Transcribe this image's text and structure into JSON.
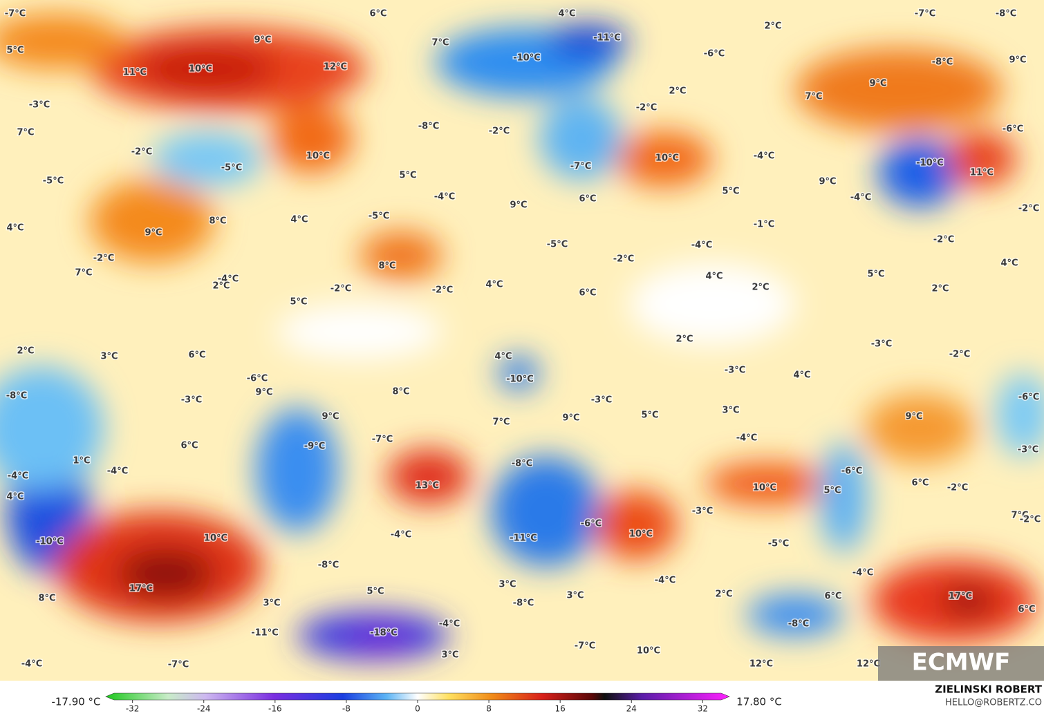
{
  "map": {
    "labels": [
      "-7°C",
      "6°C",
      "4°C",
      "-7°C",
      "-8°C",
      "5°C",
      "9°C",
      "-11°C",
      "2°C",
      "7°C",
      "11°C",
      "10°C",
      "12°C",
      "-10°C",
      "-6°C",
      "-8°C",
      "9°C",
      "-3°C",
      "9°C",
      "7°C",
      "2°C",
      "-2°C",
      "7°C",
      "-8°C",
      "-2°C",
      "-6°C",
      "-2°C",
      "-5°C",
      "10°C",
      "10°C",
      "-4°C",
      "-7°C",
      "-10°C",
      "11°C",
      "-5°C",
      "5°C",
      "9°C",
      "5°C",
      "-4°C",
      "-4°C",
      "6°C",
      "9°C",
      "-2°C",
      "4°C",
      "8°C",
      "4°C",
      "-5°C",
      "-1°C",
      "9°C",
      "-2°C",
      "-5°C",
      "-4°C",
      "-2°C",
      "8°C",
      "-2°C",
      "4°C",
      "7°C",
      "4°C",
      "5°C",
      "-4°C",
      "2°C",
      "-2°C",
      "-2°C",
      "4°C",
      "2°C",
      "2°C",
      "6°C",
      "5°C",
      "2°C",
      "-3°C",
      "2°C",
      "3°C",
      "6°C",
      "4°C",
      "-2°C",
      "-3°C",
      "-6°C",
      "-10°C",
      "4°C",
      "-8°C",
      "9°C",
      "8°C",
      "-3°C",
      "-6°C",
      "-3°C",
      "3°C",
      "5°C",
      "9°C",
      "9°C",
      "7°C",
      "9°C",
      "-7°C",
      "-9°C",
      "-4°C",
      "6°C",
      "1°C",
      "-4°C",
      "-3°C",
      "-4°C",
      "-8°C",
      "-6°C",
      "4°C",
      "13°C",
      "10°C",
      "5°C",
      "6°C",
      "-2°C",
      "-3°C",
      "-6°C",
      "7°C",
      "-2°C",
      "-10°C",
      "10°C",
      "-4°C",
      "-11°C",
      "10°C",
      "-5°C",
      "-8°C",
      "-4°C",
      "17°C",
      "3°C",
      "-4°C",
      "5°C",
      "8°C",
      "3°C",
      "-8°C",
      "3°C",
      "2°C",
      "6°C",
      "17°C",
      "6°C",
      "-11°C",
      "-18°C",
      "-4°C",
      "-8°C",
      "-7°C",
      "10°C",
      "3°C",
      "-4°C",
      "-7°C",
      "12°C",
      "12°C"
    ]
  },
  "colorbar": {
    "min_label": "-17.90 °C",
    "max_label": "17.80 °C",
    "range": [
      -35,
      35
    ],
    "ticks": [
      -32,
      -24,
      -16,
      -8,
      0,
      8,
      16,
      24,
      32
    ]
  },
  "credit": {
    "name": "ZIELINSKI ROBERT",
    "contact": "HELLO@ROBERTZ.CO"
  },
  "logo": "ECMWF"
}
